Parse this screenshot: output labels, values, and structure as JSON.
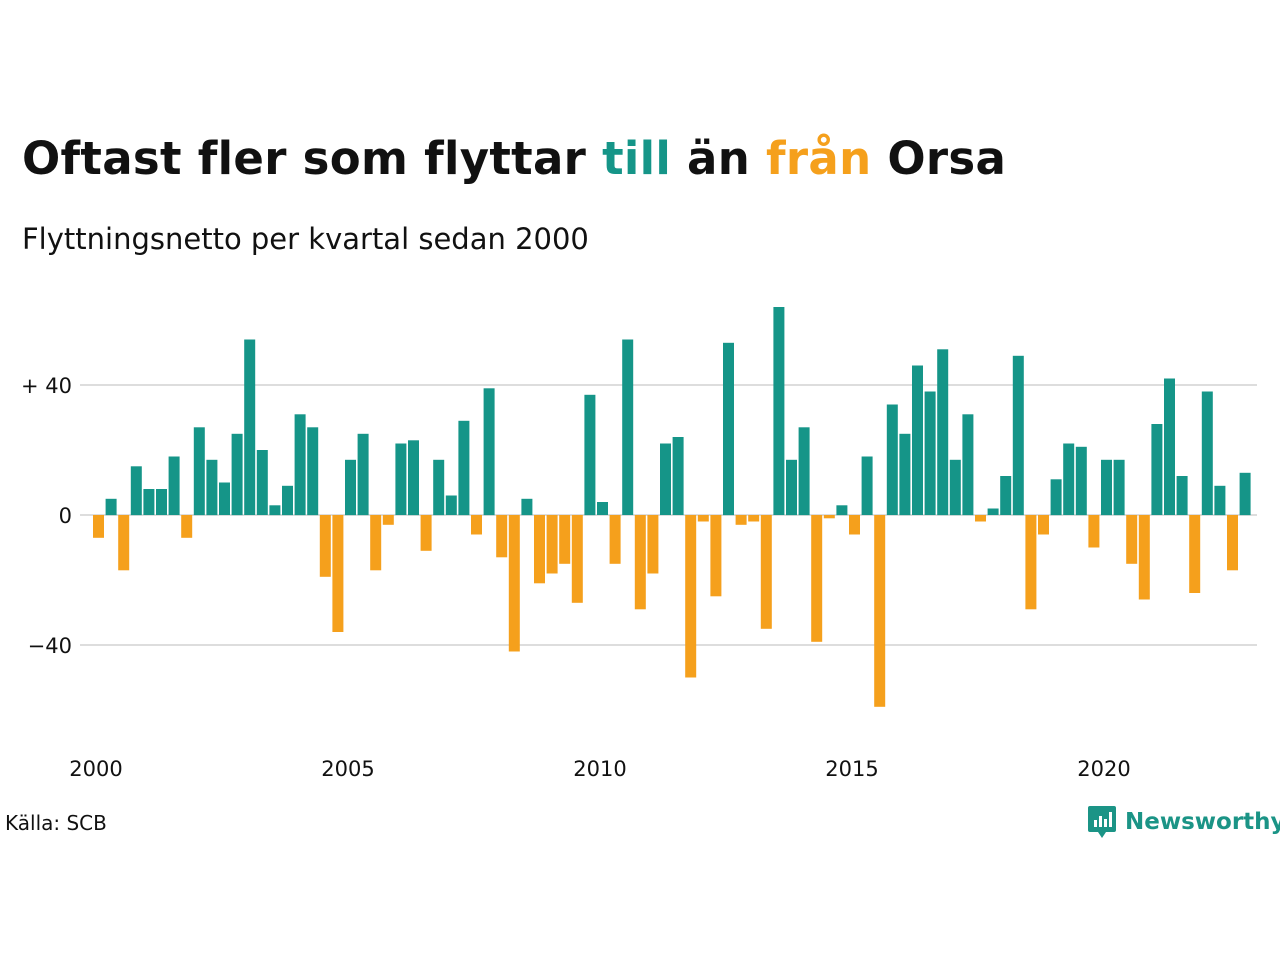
{
  "header": {
    "title_part1": "Oftast fler som flyttar ",
    "title_till": "till",
    "title_part2": " än ",
    "title_fran": "från",
    "title_part3": " Orsa",
    "subtitle": "Flyttningsnetto per kvartal sedan 2000"
  },
  "footer": {
    "source": "Källa: SCB",
    "brand": "Newsworthy"
  },
  "colors": {
    "positive": "#159588",
    "negative": "#f5a01c",
    "grid": "#dddddd",
    "brand": "#1b9486"
  },
  "chart_data": {
    "type": "bar",
    "title": "Oftast fler som flyttar till än från Orsa",
    "subtitle": "Flyttningsnetto per kvartal sedan 2000",
    "xlabel": "",
    "ylabel": "",
    "x_ticks": [
      "2000",
      "2005",
      "2010",
      "2015",
      "2020"
    ],
    "y_ticks": [
      {
        "value": 40,
        "label": "+ 40"
      },
      {
        "value": 0,
        "label": "0"
      },
      {
        "value": -40,
        "label": "−40"
      }
    ],
    "ylim": [
      -60,
      64
    ],
    "grid": true,
    "start_year": 2000,
    "quarterly_values": [
      -7,
      5,
      -17,
      15,
      8,
      8,
      18,
      -7,
      27,
      17,
      10,
      25,
      54,
      20,
      3,
      9,
      31,
      27,
      -19,
      -36,
      17,
      25,
      -17,
      -3,
      22,
      23,
      -11,
      17,
      6,
      29,
      -6,
      39,
      -13,
      -42,
      5,
      -21,
      -18,
      -15,
      -27,
      37,
      4,
      -15,
      54,
      -29,
      -18,
      22,
      24,
      -50,
      -2,
      -25,
      53,
      -3,
      -2,
      -35,
      64,
      17,
      27,
      -39,
      -1,
      3,
      -6,
      18,
      -59,
      34,
      25,
      46,
      38,
      51,
      17,
      31,
      -2,
      2,
      12,
      49,
      -29,
      -6,
      11,
      22,
      21,
      -10,
      17,
      17,
      -15,
      -26,
      28,
      42,
      12,
      -24,
      38,
      9,
      -17,
      13
    ]
  }
}
